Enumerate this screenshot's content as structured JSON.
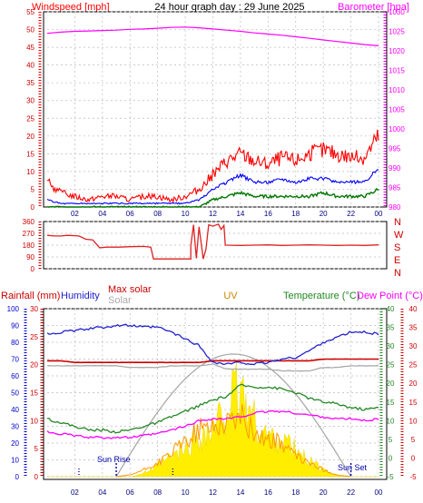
{
  "page_title": "24 hour graph day : 29 June 2025",
  "colors": {
    "wind": "#ff0000",
    "gust": "#ff0000",
    "avg_wind": "#0000ff",
    "low_wind": "#007700",
    "barometer": "#ff00ff",
    "direction": "#dd2222",
    "rain_axis": "#0000ee",
    "humidity": "#2222cc",
    "solar": "#aaaaaa",
    "max_solar": "#ff0000",
    "uv": "#ffee00",
    "uv_label": "#cc8800",
    "temperature": "#228822",
    "dewpoint": "#ff00ff",
    "rain_total": "#cc0000",
    "sun_marker": "#0000aa"
  },
  "chart_data": [
    {
      "type": "line",
      "left_axis_label": "Windspeed [mph]",
      "right_axis_label": "Barometer [hpa]",
      "x_ticks": [
        "02",
        "04",
        "06",
        "08",
        "10",
        "12",
        "14",
        "16",
        "18",
        "20",
        "22",
        "00"
      ],
      "ylim_left": [
        0,
        55
      ],
      "yticks_left": [
        "0",
        "5",
        "10",
        "15",
        "20",
        "25",
        "30",
        "35",
        "40",
        "45",
        "50",
        "55"
      ],
      "ylim_right": [
        980,
        1030
      ],
      "yticks_right": [
        "980",
        "985",
        "990",
        "995",
        "1000",
        "1005",
        "1010",
        "1015",
        "1020",
        "1025",
        "1030"
      ],
      "x_hours": [
        0,
        1,
        2,
        3,
        4,
        5,
        6,
        7,
        8,
        9,
        10,
        11,
        12,
        13,
        14,
        15,
        16,
        17,
        18,
        19,
        20,
        21,
        22,
        23,
        24
      ],
      "series": [
        {
          "name": "gust",
          "values": [
            7,
            4,
            3,
            2,
            3,
            3,
            2,
            3,
            3,
            2,
            3,
            5,
            9,
            13,
            15,
            13,
            12,
            14,
            13,
            15,
            16,
            15,
            14,
            14,
            20
          ]
        },
        {
          "name": "average",
          "values": [
            2,
            1,
            1,
            1,
            1,
            1,
            1,
            1,
            1,
            1,
            1,
            2,
            5,
            7,
            9,
            7,
            7,
            8,
            7,
            8,
            8,
            7,
            7,
            7,
            11
          ]
        },
        {
          "name": "low",
          "values": [
            0,
            0,
            0,
            0,
            0,
            0,
            0,
            0,
            0,
            0,
            0,
            0,
            2,
            3,
            4,
            3,
            3,
            3,
            3,
            3,
            4,
            3,
            3,
            3,
            5
          ]
        },
        {
          "name": "barometer",
          "axis": "right",
          "values": [
            1024.5,
            1024.8,
            1025.0,
            1025.1,
            1025.2,
            1025.3,
            1025.5,
            1025.6,
            1025.8,
            1026.0,
            1026.1,
            1025.9,
            1025.6,
            1025.3,
            1025.0,
            1024.6,
            1024.3,
            1024.0,
            1023.6,
            1023.2,
            1022.8,
            1022.4,
            1022.0,
            1021.6,
            1021.3
          ]
        }
      ]
    },
    {
      "type": "line",
      "yticks_left": [
        "0",
        "90",
        "180",
        "270",
        "360"
      ],
      "ylim": [
        0,
        360
      ],
      "direction_labels": [
        "N",
        "W",
        "S",
        "E",
        "N"
      ],
      "series": [
        {
          "name": "direction",
          "points": [
            [
              0.0,
              255
            ],
            [
              0.5,
              250
            ],
            [
              1.0,
              250
            ],
            [
              1.5,
              255
            ],
            [
              2.3,
              250
            ],
            [
              2.8,
              225
            ],
            [
              3.3,
              220
            ],
            [
              3.8,
              160
            ],
            [
              4.3,
              165
            ],
            [
              5.2,
              165
            ],
            [
              6.0,
              168
            ],
            [
              7.0,
              170
            ],
            [
              7.5,
              165
            ],
            [
              7.7,
              75
            ],
            [
              9.0,
              75
            ],
            [
              10.4,
              75
            ],
            [
              10.4,
              175
            ],
            [
              10.6,
              335
            ],
            [
              10.8,
              80
            ],
            [
              11.0,
              320
            ],
            [
              11.3,
              75
            ],
            [
              11.5,
              150
            ],
            [
              11.7,
              335
            ],
            [
              12.0,
              325
            ],
            [
              12.4,
              340
            ],
            [
              12.6,
              300
            ],
            [
              12.8,
              330
            ],
            [
              12.9,
              180
            ],
            [
              14.0,
              178
            ],
            [
              15.0,
              180
            ],
            [
              16.0,
              182
            ],
            [
              17.0,
              178
            ],
            [
              18.0,
              180
            ],
            [
              19.0,
              182
            ],
            [
              20.0,
              180
            ],
            [
              21.0,
              178
            ],
            [
              22.0,
              180
            ],
            [
              23.0,
              178
            ],
            [
              24.0,
              182
            ]
          ]
        }
      ]
    },
    {
      "type": "area",
      "labels": {
        "rainfall": "Rainfall (mm)",
        "humidity": "Humidity",
        "max_solar": "Max solar",
        "solar": "Solar",
        "uv": "UV",
        "temperature": "Temperature (°C)",
        "dewpoint": "Dew Point (°C)"
      },
      "yticks_humidity": [
        "0",
        "10",
        "20",
        "30",
        "40",
        "50",
        "60",
        "70",
        "80",
        "90",
        "100"
      ],
      "yticks_rain": [
        "0",
        "5",
        "10",
        "15",
        "20",
        "25",
        "30"
      ],
      "yticks_temp": [
        "-5",
        "0",
        "5",
        "10",
        "15",
        "20",
        "25",
        "30",
        "35",
        "40"
      ],
      "ylim_humidity": [
        0,
        100
      ],
      "ylim_rain": [
        0,
        30
      ],
      "ylim_temp": [
        -5,
        40
      ],
      "sunrise_label": "Sun Rise",
      "sunset_label": "Sun Set",
      "sunrise_hour": 5.0,
      "sunset_hour": 22.0,
      "x_hours": [
        0,
        1,
        2,
        3,
        4,
        5,
        6,
        7,
        8,
        9,
        10,
        11,
        12,
        13,
        14,
        15,
        16,
        17,
        18,
        19,
        20,
        21,
        22,
        23,
        24
      ],
      "series": [
        {
          "name": "humidity",
          "values": [
            85,
            86,
            87,
            88,
            89,
            90,
            90,
            89,
            89,
            86,
            82,
            78,
            68,
            67,
            68,
            67,
            68,
            70,
            71,
            75,
            80,
            83,
            86,
            86,
            85
          ]
        },
        {
          "name": "rain_total",
          "values": [
            69,
            69,
            68,
            68,
            68,
            68,
            68,
            68,
            68,
            68,
            68,
            68,
            69,
            69,
            69,
            69,
            69,
            69,
            69,
            69,
            70,
            70,
            70,
            70,
            70
          ]
        },
        {
          "name": "solar_flat",
          "values": [
            66,
            66,
            66,
            66,
            66,
            66,
            65,
            65,
            65,
            66,
            66,
            66,
            67,
            64,
            64,
            64,
            64,
            63,
            63,
            63,
            65,
            65,
            66,
            66,
            66
          ]
        },
        {
          "name": "temperature",
          "values": [
            10.5,
            9.5,
            8.5,
            7.5,
            7.5,
            7.0,
            7.5,
            8.5,
            9.5,
            11.0,
            12.5,
            14.0,
            15.5,
            16.5,
            19.5,
            19.0,
            19.0,
            18.5,
            17.5,
            16.0,
            15.0,
            14.5,
            13.5,
            13.0,
            13.5
          ]
        },
        {
          "name": "dewpoint",
          "values": [
            7.0,
            6.5,
            6.0,
            5.5,
            5.5,
            5.5,
            5.5,
            6.0,
            6.5,
            7.5,
            8.5,
            10.0,
            10.5,
            10.5,
            11.0,
            12.0,
            12.5,
            12.5,
            12.0,
            11.5,
            11.0,
            10.5,
            10.5,
            10.0,
            10.5
          ]
        },
        {
          "name": "max_solar",
          "values": [
            0,
            0,
            0,
            0,
            0,
            0,
            5,
            15,
            28,
            42,
            55,
            65,
            71,
            73,
            71,
            66,
            57,
            46,
            33,
            20,
            9,
            2,
            0,
            0,
            0
          ]
        },
        {
          "name": "solar",
          "values": [
            0,
            0,
            0,
            0,
            0,
            0,
            1,
            4,
            8,
            14,
            21,
            28,
            30,
            33,
            36,
            26,
            22,
            20,
            12,
            8,
            4,
            1,
            0,
            0,
            0
          ]
        },
        {
          "name": "uv",
          "values": [
            0,
            0,
            0,
            0,
            0,
            0,
            0,
            2,
            6,
            11,
            16,
            24,
            25,
            40,
            50,
            32,
            23,
            22,
            15,
            9,
            4,
            1,
            0,
            0,
            0
          ]
        }
      ]
    }
  ]
}
